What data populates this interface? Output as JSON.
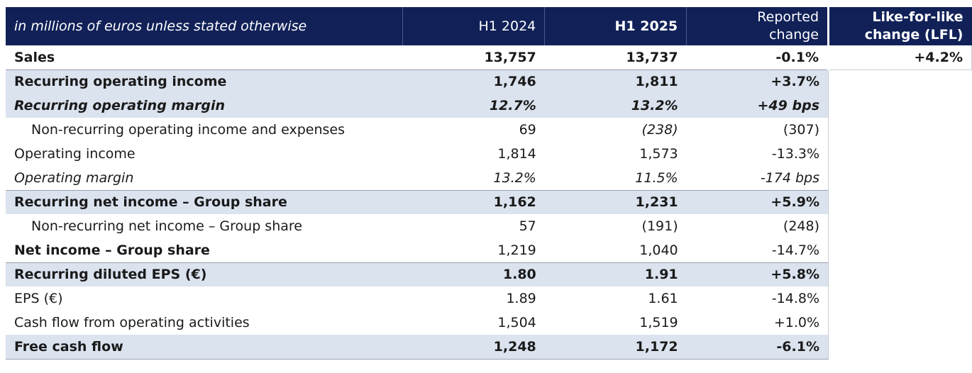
{
  "header": {
    "label": "in millions of euros unless stated otherwise",
    "h1_2024": "H1 2024",
    "h1_2025": "H1 2025",
    "reported_line1": "Reported",
    "reported_line2": "change",
    "lfl_line1": "Like-for-like",
    "lfl_line2": "change (LFL)"
  },
  "rows": [
    {
      "label": "Sales",
      "h1_2024": "13,757",
      "h1_2025": "13,737",
      "reported": "-0.1%",
      "lfl": "+4.2%"
    },
    {
      "label": "Recurring operating income",
      "h1_2024": "1,746",
      "h1_2025": "1,811",
      "reported": "+3.7%"
    },
    {
      "label": "Recurring operating margin",
      "h1_2024": "12.7%",
      "h1_2025": "13.2%",
      "reported": "+49 bps"
    },
    {
      "label": "Non-recurring operating income and expenses",
      "h1_2024": "69",
      "h1_2025": "(238)",
      "reported": "(307)"
    },
    {
      "label": "Operating income",
      "h1_2024": "1,814",
      "h1_2025": "1,573",
      "reported": "-13.3%"
    },
    {
      "label": "Operating margin",
      "h1_2024": "13.2%",
      "h1_2025": "11.5%",
      "reported": "-174 bps"
    },
    {
      "label": "Recurring net income – Group share",
      "h1_2024": "1,162",
      "h1_2025": "1,231",
      "reported": "+5.9%"
    },
    {
      "label": "Non-recurring net income – Group share",
      "h1_2024": "57",
      "h1_2025": "(191)",
      "reported": "(248)"
    },
    {
      "label": "Net income – Group share",
      "h1_2024": "1,219",
      "h1_2025": "1,040",
      "reported": "-14.7%"
    },
    {
      "label": "Recurring diluted EPS (€)",
      "h1_2024": "1.80",
      "h1_2025": "1.91",
      "reported": "+5.8%"
    },
    {
      "label": "EPS (€)",
      "h1_2024": "1.89",
      "h1_2025": "1.61",
      "reported": "-14.8%"
    },
    {
      "label": "Cash flow from operating activities",
      "h1_2024": "1,504",
      "h1_2025": "1,519",
      "reported": "+1.0%"
    },
    {
      "label": "Free cash flow",
      "h1_2024": "1,248",
      "h1_2025": "1,172",
      "reported": "-6.1%"
    }
  ],
  "colors": {
    "header_bg": "#112158",
    "shade_bg": "#dbe3ef"
  }
}
